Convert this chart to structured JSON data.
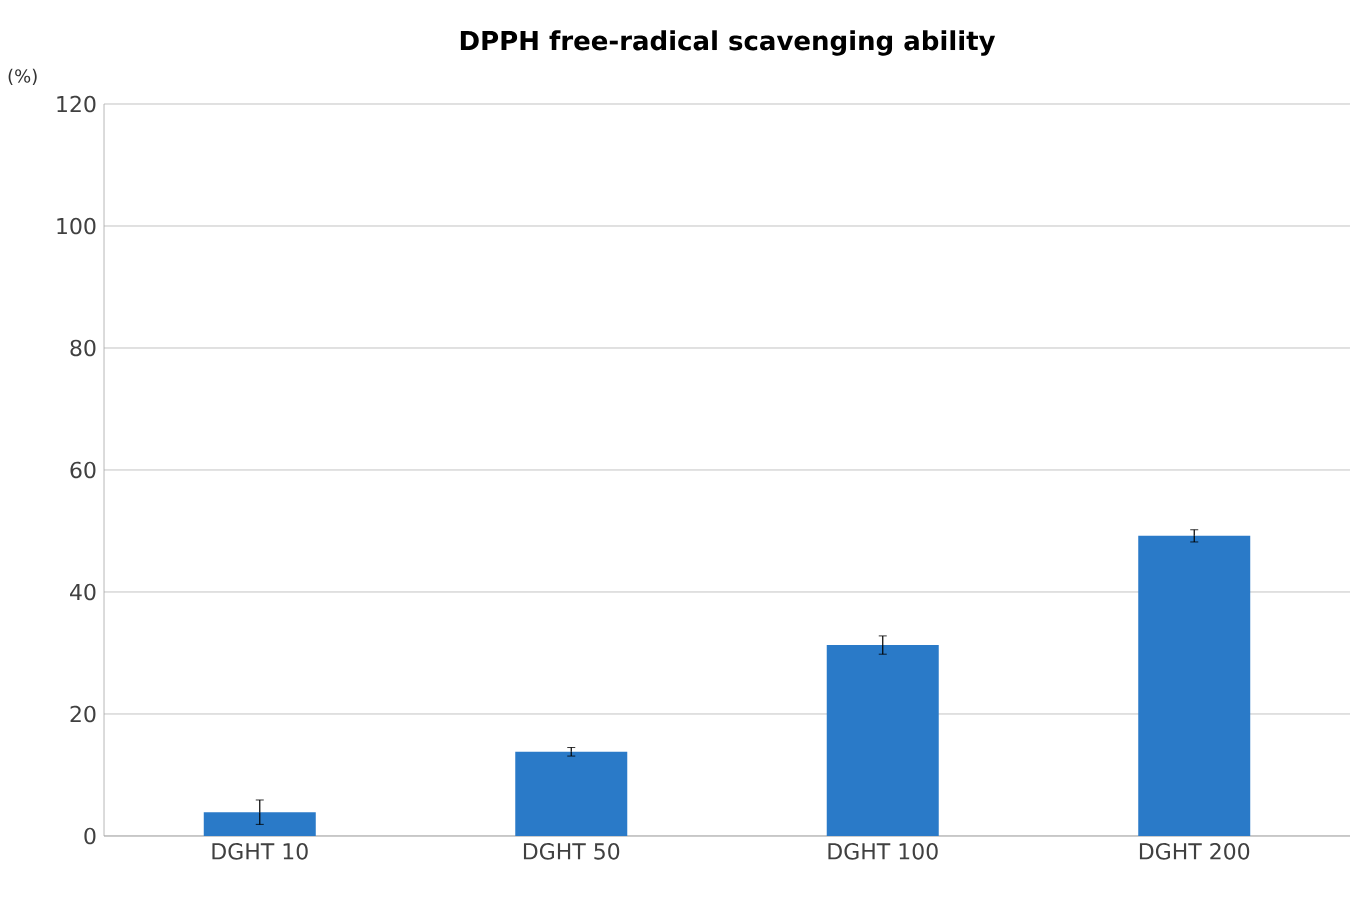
{
  "chart_data": {
    "type": "bar",
    "title": "DPPH free-radical scavenging ability",
    "ylabel": "(%)",
    "categories": [
      "DGHT 10",
      "DGHT 50",
      "DGHT 100",
      "DGHT 200"
    ],
    "values": [
      3.9,
      13.8,
      31.3,
      49.2
    ],
    "errors": [
      2,
      0.7,
      1.5,
      1
    ],
    "color": "#2a7ac8",
    "ylim": [
      0,
      120
    ],
    "yticks": [
      0,
      20,
      40,
      60,
      80,
      100,
      120
    ],
    "grid": "y"
  }
}
